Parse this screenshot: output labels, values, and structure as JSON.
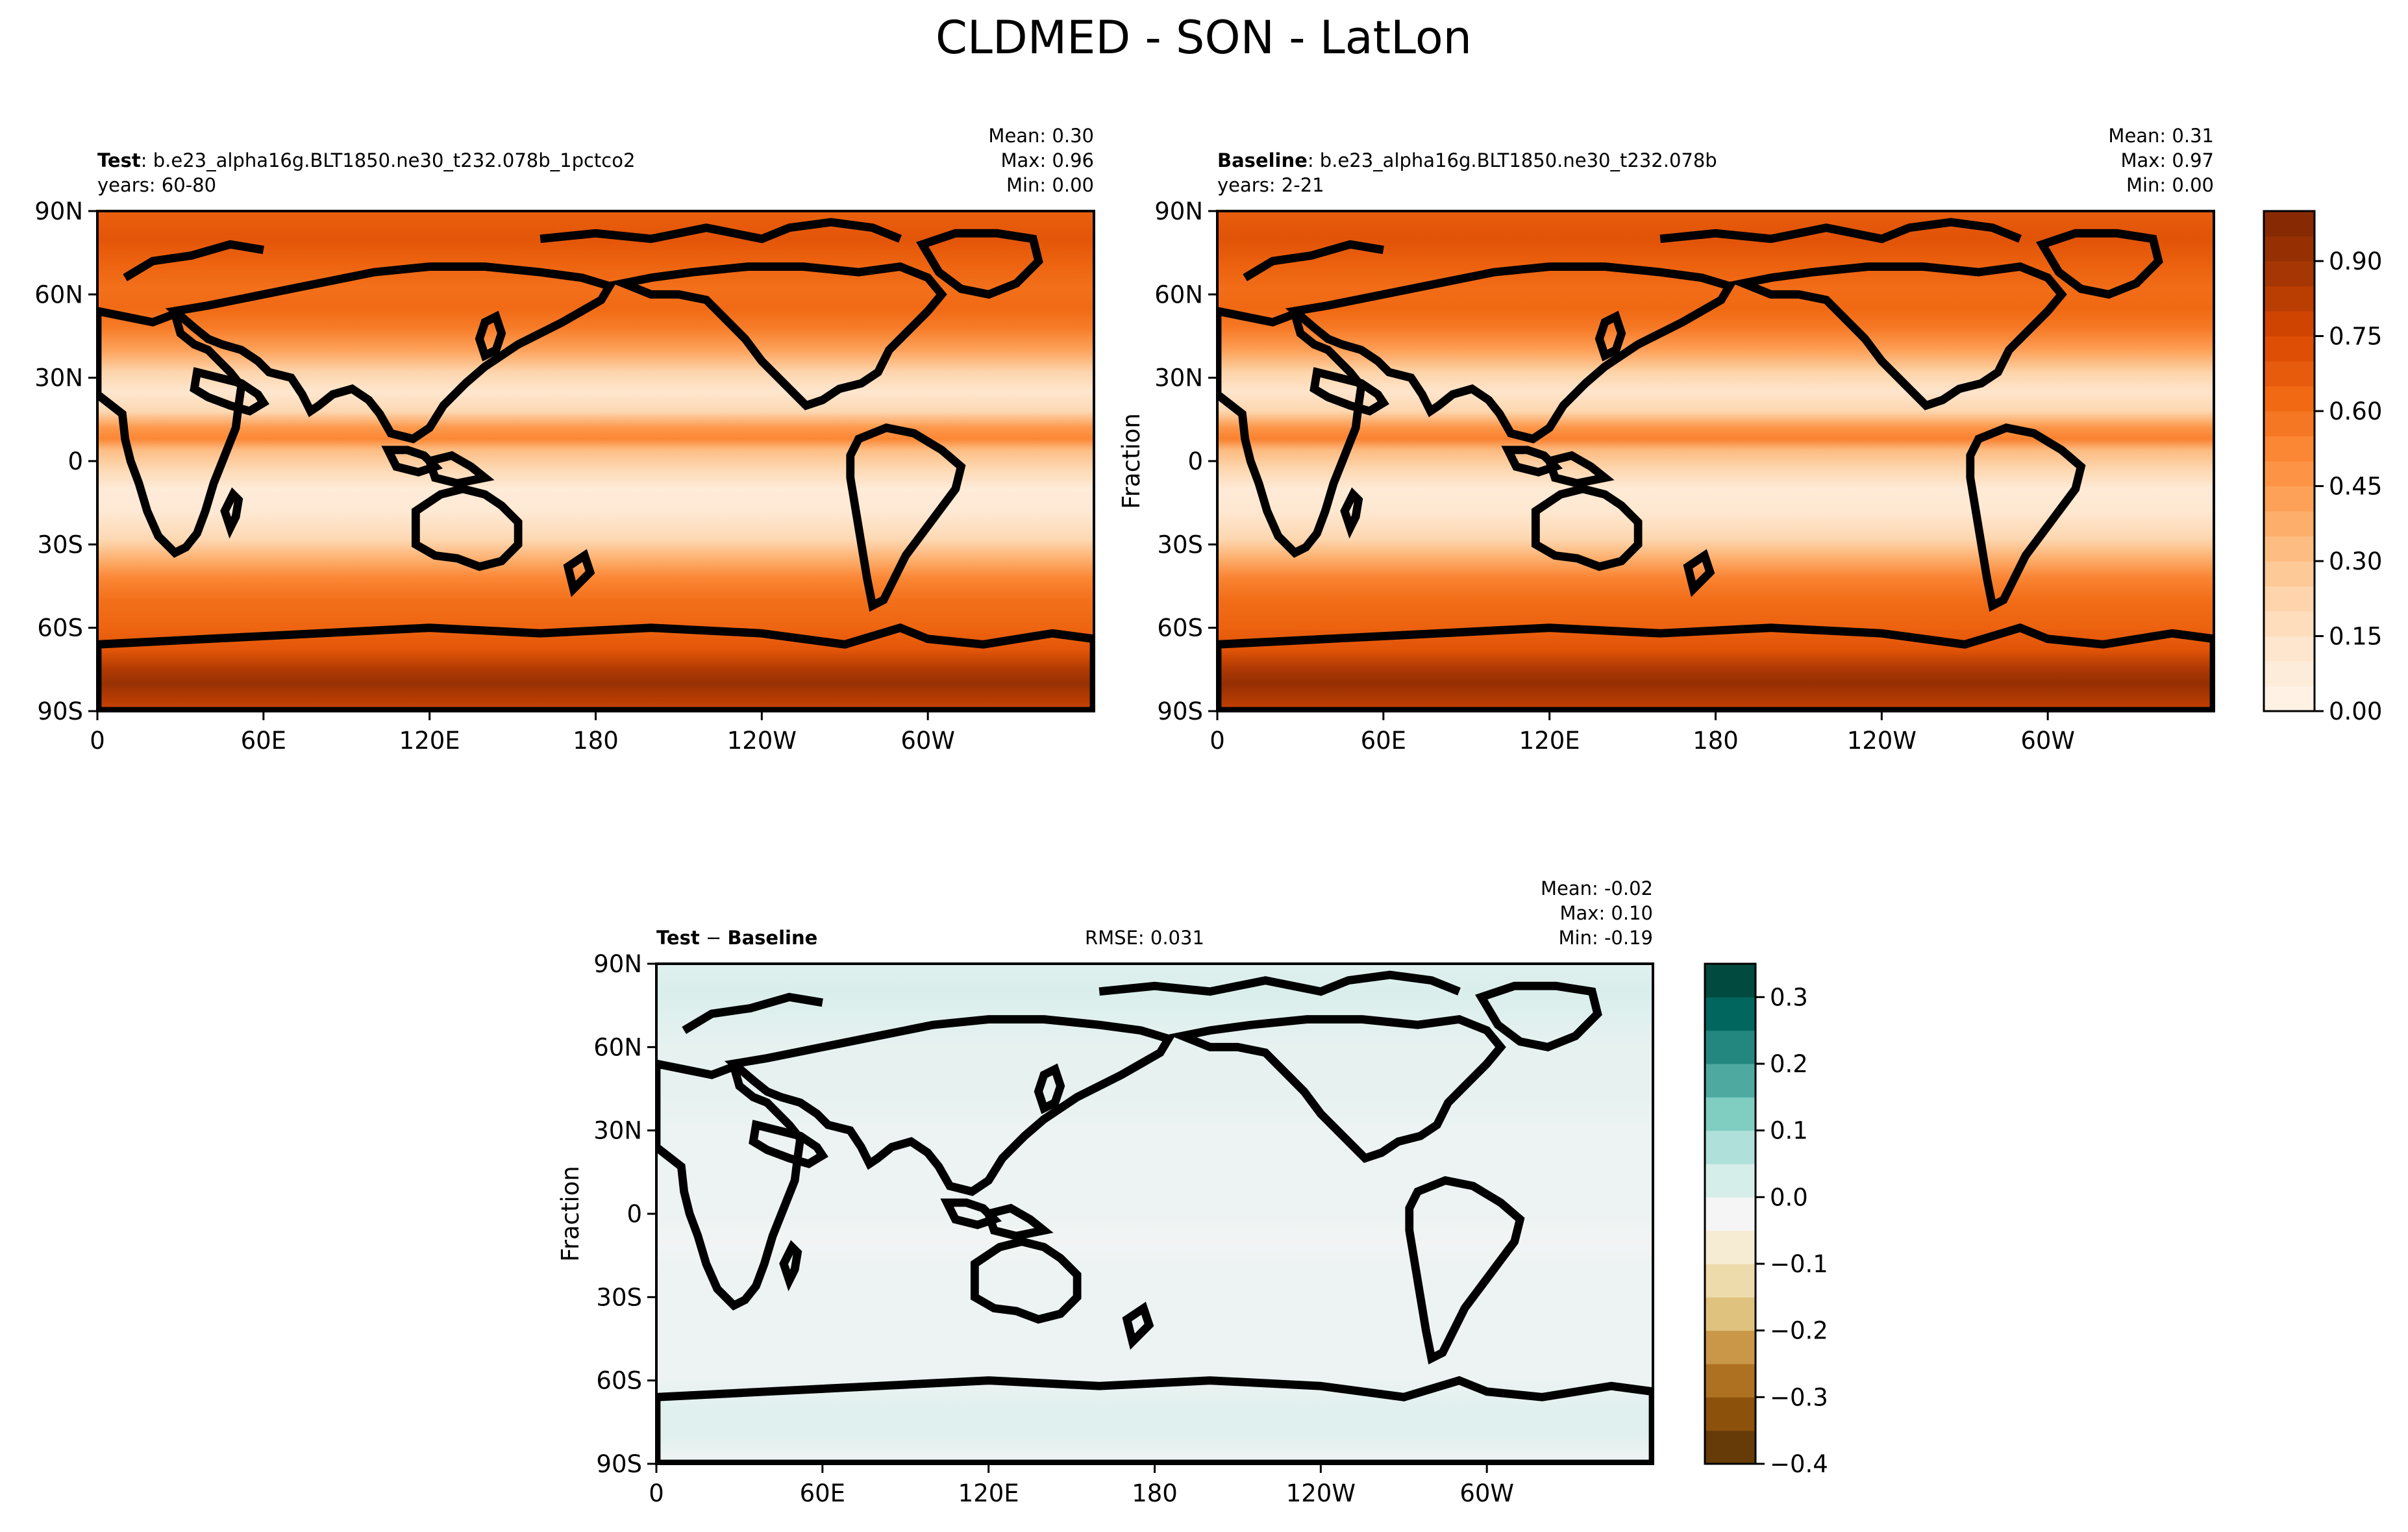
{
  "figure": {
    "title": "CLDMED - SON - LatLon"
  },
  "chart_data": [
    {
      "type": "heatmap",
      "panel": "test",
      "label_bold": "Test",
      "label_rest": ": b.e23_alpha16g.BLT1850.ne30_t232.078b_1pctco2",
      "years": "years: 60-80",
      "stats": {
        "mean": "Mean:  0.30",
        "max": "Max:  0.96",
        "min": "Min:  0.00"
      },
      "ylabel": "",
      "xticks": [
        "0",
        "60E",
        "120E",
        "180",
        "120W",
        "60W"
      ],
      "yticks": [
        "90N",
        "60N",
        "30N",
        "0",
        "30S",
        "60S",
        "90S"
      ],
      "xlim": [
        0,
        360
      ],
      "ylim": [
        -90,
        90
      ],
      "colormap": "Oranges",
      "zonal_profile": [
        [
          -90,
          0.78
        ],
        [
          -80,
          0.92
        ],
        [
          -75,
          0.85
        ],
        [
          -68,
          0.7
        ],
        [
          -60,
          0.64
        ],
        [
          -50,
          0.6
        ],
        [
          -42,
          0.52
        ],
        [
          -35,
          0.36
        ],
        [
          -28,
          0.2
        ],
        [
          -18,
          0.1
        ],
        [
          -10,
          0.08
        ],
        [
          -3,
          0.2
        ],
        [
          4,
          0.32
        ],
        [
          8,
          0.52
        ],
        [
          12,
          0.46
        ],
        [
          18,
          0.2
        ],
        [
          25,
          0.12
        ],
        [
          32,
          0.22
        ],
        [
          40,
          0.42
        ],
        [
          48,
          0.56
        ],
        [
          55,
          0.62
        ],
        [
          62,
          0.6
        ],
        [
          70,
          0.64
        ],
        [
          80,
          0.7
        ],
        [
          90,
          0.66
        ]
      ]
    },
    {
      "type": "heatmap",
      "panel": "baseline",
      "label_bold": "Baseline",
      "label_rest": ": b.e23_alpha16g.BLT1850.ne30_t232.078b",
      "years": "years: 2-21",
      "stats": {
        "mean": "Mean:  0.31",
        "max": "Max:  0.97",
        "min": "Min:  0.00"
      },
      "ylabel": "Fraction",
      "xticks": [
        "0",
        "60E",
        "120E",
        "180",
        "120W",
        "60W"
      ],
      "yticks": [
        "90N",
        "60N",
        "30N",
        "0",
        "30S",
        "60S",
        "90S"
      ],
      "xlim": [
        0,
        360
      ],
      "ylim": [
        -90,
        90
      ],
      "colormap": "Oranges",
      "colorbar": {
        "ticks": [
          "0.00",
          "0.15",
          "0.30",
          "0.45",
          "0.60",
          "0.75",
          "0.90"
        ],
        "tick_values": [
          0,
          0.15,
          0.3,
          0.45,
          0.6,
          0.75,
          0.9
        ],
        "range": [
          0,
          1.0
        ],
        "levels": 20
      },
      "zonal_profile": [
        [
          -90,
          0.8
        ],
        [
          -80,
          0.93
        ],
        [
          -75,
          0.86
        ],
        [
          -68,
          0.71
        ],
        [
          -60,
          0.65
        ],
        [
          -50,
          0.61
        ],
        [
          -42,
          0.53
        ],
        [
          -35,
          0.37
        ],
        [
          -28,
          0.21
        ],
        [
          -18,
          0.11
        ],
        [
          -10,
          0.09
        ],
        [
          -3,
          0.21
        ],
        [
          4,
          0.33
        ],
        [
          8,
          0.54
        ],
        [
          12,
          0.47
        ],
        [
          18,
          0.21
        ],
        [
          25,
          0.13
        ],
        [
          32,
          0.23
        ],
        [
          40,
          0.43
        ],
        [
          48,
          0.57
        ],
        [
          55,
          0.63
        ],
        [
          62,
          0.61
        ],
        [
          70,
          0.65
        ],
        [
          80,
          0.71
        ],
        [
          90,
          0.67
        ]
      ]
    },
    {
      "type": "heatmap",
      "panel": "difference",
      "label_bold": "Test",
      "label_mid": " − ",
      "label_bold2": "Baseline",
      "rmse": "RMSE: 0.031",
      "stats": {
        "mean": "Mean: -0.02",
        "max": "Max:  0.10",
        "min": "Min: -0.19"
      },
      "ylabel": "Fraction",
      "xticks": [
        "0",
        "60E",
        "120E",
        "180",
        "120W",
        "60W"
      ],
      "yticks": [
        "90N",
        "60N",
        "30N",
        "0",
        "30S",
        "60S",
        "90S"
      ],
      "xlim": [
        0,
        360
      ],
      "ylim": [
        -90,
        90
      ],
      "colormap": "BrBG",
      "colorbar": {
        "ticks": [
          "0.3",
          "0.2",
          "0.1",
          "0.0",
          "−0.1",
          "−0.2",
          "−0.3",
          "−0.4"
        ],
        "tick_values": [
          0.3,
          0.2,
          0.1,
          0.0,
          -0.1,
          -0.2,
          -0.3,
          -0.4
        ],
        "range": [
          -0.4,
          0.35
        ],
        "levels": 15
      },
      "zonal_profile": [
        [
          -90,
          -0.02
        ],
        [
          -80,
          0.01
        ],
        [
          -70,
          0.01
        ],
        [
          -60,
          -0.01
        ],
        [
          -45,
          -0.01
        ],
        [
          -30,
          -0.01
        ],
        [
          -20,
          -0.01
        ],
        [
          -10,
          -0.02
        ],
        [
          0,
          -0.01
        ],
        [
          10,
          -0.01
        ],
        [
          20,
          -0.01
        ],
        [
          30,
          -0.01
        ],
        [
          45,
          0.0
        ],
        [
          60,
          0.0
        ],
        [
          70,
          0.01
        ],
        [
          80,
          0.02
        ],
        [
          90,
          0.01
        ]
      ]
    }
  ],
  "colors": {
    "oranges": [
      "#fff5eb",
      "#fee6ce",
      "#fdd0a2",
      "#fdae6b",
      "#fd8d3c",
      "#f16913",
      "#d94801",
      "#a63603",
      "#7f2704"
    ],
    "brbg": [
      "#543005",
      "#8c510a",
      "#bf812d",
      "#dfc27d",
      "#f6e8c3",
      "#f5f5f5",
      "#c7eae5",
      "#80cdc1",
      "#35978f",
      "#01665e",
      "#003c30"
    ]
  }
}
